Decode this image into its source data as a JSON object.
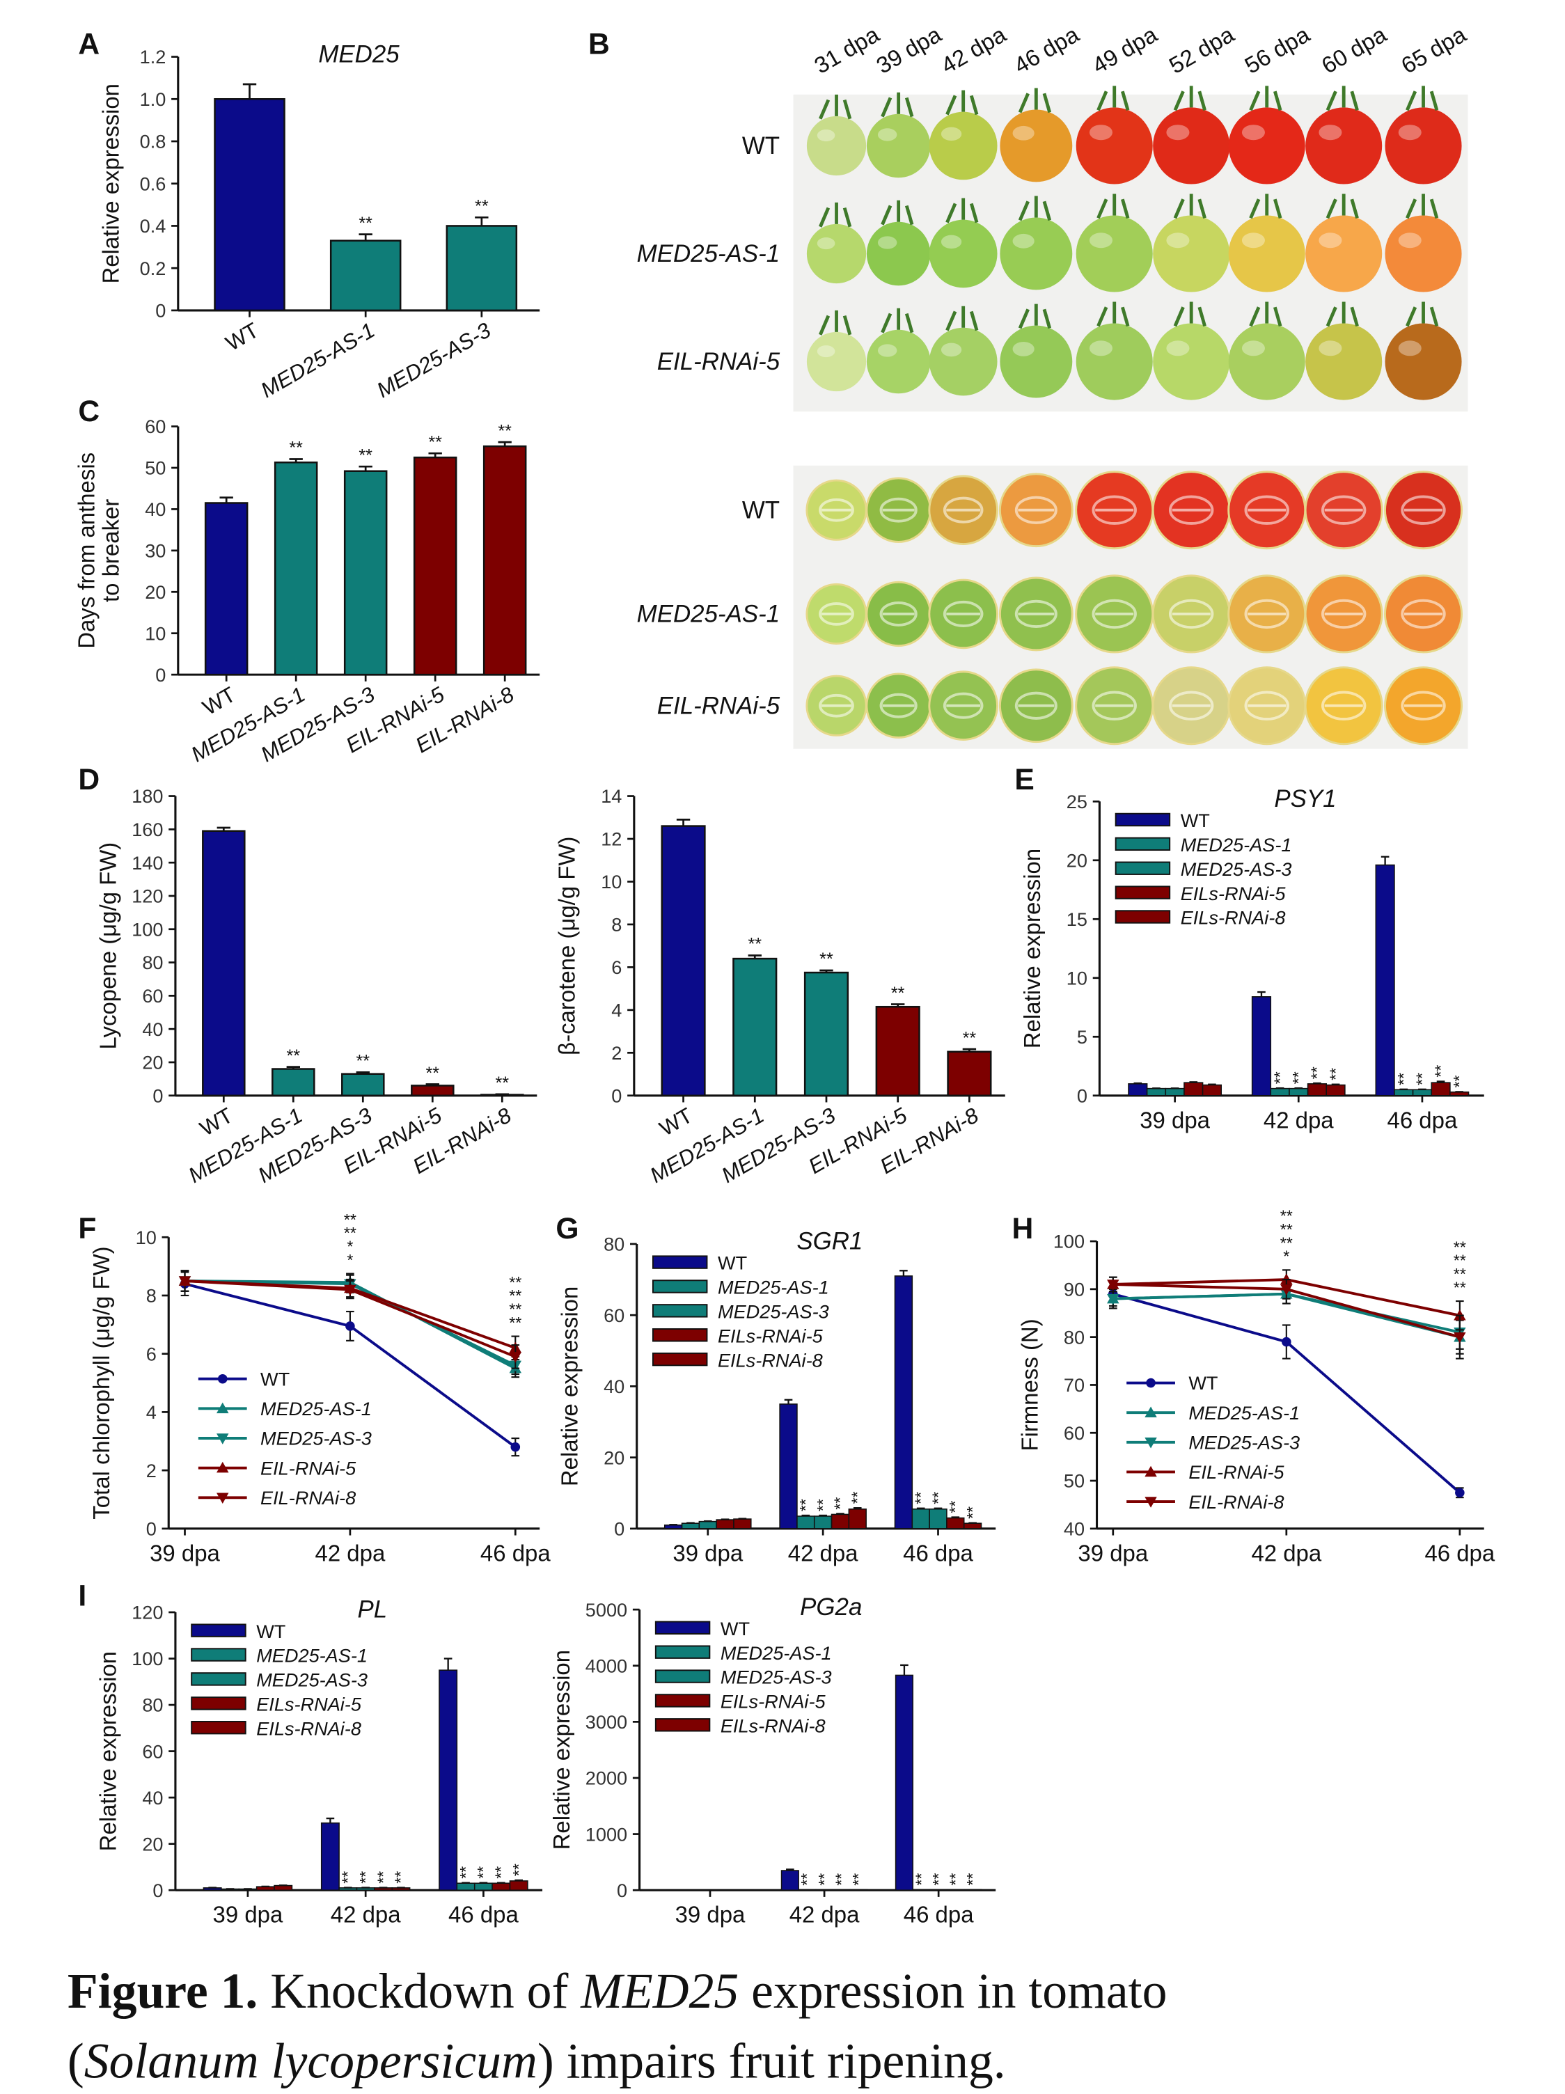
{
  "colors": {
    "wt": "#0b0b8a",
    "med25": "#0f7d78",
    "eil": "#7d0000",
    "axis": "#111111"
  },
  "panel_letters": [
    "A",
    "B",
    "C",
    "D",
    "E",
    "F",
    "G",
    "H",
    "I"
  ],
  "photos": {
    "dpa_labels": [
      "31 dpa",
      "39 dpa",
      "42 dpa",
      "46 dpa",
      "49 dpa",
      "52 dpa",
      "56 dpa",
      "60 dpa",
      "65 dpa"
    ],
    "whole_rows": [
      {
        "label": "WT",
        "colors": [
          "#c8dc8a",
          "#a9cf5e",
          "#b9cc4a",
          "#e59a2a",
          "#e23418",
          "#e02a18",
          "#e42818",
          "#e02a1a",
          "#de2b1a"
        ]
      },
      {
        "label": "MED25-AS-1",
        "colors": [
          "#b6d86c",
          "#8cc84e",
          "#94cc52",
          "#98cc54",
          "#a2ce58",
          "#c7d660",
          "#e6c648",
          "#f7a74a",
          "#f38a3a"
        ]
      },
      {
        "label": "EIL-RNAi-5",
        "colors": [
          "#d2e49a",
          "#a7d366",
          "#a5d064",
          "#95c957",
          "#9fcc5c",
          "#b7d868",
          "#a9cf5f",
          "#c6c44a",
          "#b86a1c"
        ]
      }
    ],
    "cut_rows": [
      {
        "label": "WT",
        "colors": [
          "#c9da6a",
          "#90bb44",
          "#d7a640",
          "#ec9a40",
          "#e53a22",
          "#e33322",
          "#e53a26",
          "#e3402c",
          "#d8301e"
        ]
      },
      {
        "label": "MED25-AS-1",
        "colors": [
          "#bfdb6c",
          "#88bd48",
          "#8cbf4c",
          "#90c04e",
          "#9bc452",
          "#c8d068",
          "#e8b048",
          "#f0963a",
          "#f08a36"
        ]
      },
      {
        "label": "EIL-RNAi-5",
        "colors": [
          "#b9d66a",
          "#8cbf4c",
          "#94c252",
          "#8ebd4c",
          "#a4c75a",
          "#d7d288",
          "#e3d27a",
          "#f2c440",
          "#f3a62c"
        ]
      }
    ]
  },
  "chart_data": [
    {
      "id": "A",
      "type": "bar",
      "title": "MED25",
      "ylabel": [
        "Relative expression"
      ],
      "ylim": [
        0,
        1.2
      ],
      "ytick_step": 0.2,
      "yticks": [
        "0",
        "0.2",
        "0.4",
        "0.6",
        "0.8",
        "1.0",
        "1.2"
      ],
      "categories": [
        "WT",
        "MED25-AS-1",
        "MED25-AS-3"
      ],
      "values": [
        1.0,
        0.33,
        0.4
      ],
      "errors": [
        0.07,
        0.03,
        0.04
      ],
      "sig": [
        "",
        "**",
        "**"
      ],
      "bar_colors": [
        "wt",
        "med25",
        "med25"
      ]
    },
    {
      "id": "C",
      "type": "bar",
      "title": "",
      "ylabel": [
        "Days from anthesis",
        "to breaker"
      ],
      "ylim": [
        0,
        60
      ],
      "ytick_step": 10,
      "yticks": [
        "0",
        "10",
        "20",
        "30",
        "40",
        "50",
        "60"
      ],
      "categories": [
        "WT",
        "MED25-AS-1",
        "MED25-AS-3",
        "EIL-RNAi-5",
        "EIL-RNAi-8"
      ],
      "values": [
        41.5,
        51.3,
        49.2,
        52.5,
        55.2
      ],
      "errors": [
        1.3,
        0.8,
        1.1,
        1.0,
        1.0
      ],
      "sig": [
        "",
        "**",
        "**",
        "**",
        "**"
      ],
      "bar_colors": [
        "wt",
        "med25",
        "med25",
        "eil",
        "eil"
      ]
    },
    {
      "id": "D1",
      "type": "bar",
      "title": "",
      "ylabel": [
        "Lycopene (μg/g FW)"
      ],
      "ylim": [
        0,
        180
      ],
      "ytick_step": 20,
      "yticks": [
        "0",
        "20",
        "40",
        "60",
        "80",
        "100",
        "120",
        "140",
        "160",
        "180"
      ],
      "categories": [
        "WT",
        "MED25-AS-1",
        "MED25-AS-3",
        "EIL-RNAi-5",
        "EIL-RNAi-8"
      ],
      "values": [
        159,
        16,
        13,
        6,
        0.5
      ],
      "errors": [
        2,
        1.2,
        1,
        0.8,
        0.3
      ],
      "sig": [
        "",
        "**",
        "**",
        "**",
        "**"
      ],
      "bar_colors": [
        "wt",
        "med25",
        "med25",
        "eil",
        "eil"
      ]
    },
    {
      "id": "D2",
      "type": "bar",
      "title": "",
      "ylabel": [
        "β-carotene (μg/g FW)"
      ],
      "ylim": [
        0,
        14
      ],
      "ytick_step": 2,
      "yticks": [
        "0",
        "2",
        "4",
        "6",
        "8",
        "10",
        "12",
        "14"
      ],
      "categories": [
        "WT",
        "MED25-AS-1",
        "MED25-AS-3",
        "EIL-RNAi-5",
        "EIL-RNAi-8"
      ],
      "values": [
        12.6,
        6.4,
        5.75,
        4.15,
        2.05
      ],
      "errors": [
        0.3,
        0.15,
        0.1,
        0.12,
        0.12
      ],
      "sig": [
        "",
        "**",
        "**",
        "**",
        "**"
      ],
      "bar_colors": [
        "wt",
        "med25",
        "med25",
        "eil",
        "eil"
      ]
    },
    {
      "id": "E",
      "type": "grouped-bar",
      "title": "PSY1",
      "ylabel": [
        "Relative expression"
      ],
      "ylim": [
        0,
        25
      ],
      "ytick_step": 5,
      "yticks": [
        "0",
        "5",
        "10",
        "15",
        "20",
        "25"
      ],
      "categories": [
        "39 dpa",
        "42 dpa",
        "46 dpa"
      ],
      "series": [
        {
          "name": "WT",
          "color": "wt",
          "values": [
            1.0,
            8.4,
            19.6
          ],
          "errors": [
            0.05,
            0.4,
            0.7
          ],
          "sig": [
            "",
            "",
            ""
          ]
        },
        {
          "name": "MED25-AS-1",
          "color": "med25",
          "values": [
            0.6,
            0.6,
            0.5
          ],
          "errors": [
            0.02,
            0.03,
            0.03
          ],
          "sig": [
            "",
            "**",
            "**"
          ]
        },
        {
          "name": "MED25-AS-3",
          "color": "med25",
          "values": [
            0.6,
            0.6,
            0.5
          ],
          "errors": [
            0.02,
            0.03,
            0.03
          ],
          "sig": [
            "",
            "**",
            "**"
          ]
        },
        {
          "name": "EILs-RNAi-5",
          "color": "eil",
          "values": [
            1.1,
            1.0,
            1.1
          ],
          "errors": [
            0.05,
            0.05,
            0.1
          ],
          "sig": [
            "",
            "**",
            "**"
          ]
        },
        {
          "name": "EILs-RNAi-8",
          "color": "eil",
          "values": [
            0.9,
            0.9,
            0.3
          ],
          "errors": [
            0.05,
            0.05,
            0.02
          ],
          "sig": [
            "",
            "**",
            "**"
          ]
        }
      ],
      "legend": "top-left"
    },
    {
      "id": "F",
      "type": "line",
      "title": "",
      "ylabel": [
        "Total chlorophyll (μg/g FW)"
      ],
      "ylim": [
        0,
        10
      ],
      "ytick_step": 2,
      "yticks": [
        "0",
        "2",
        "4",
        "6",
        "8",
        "10"
      ],
      "categories": [
        "39 dpa",
        "42 dpa",
        "46 dpa"
      ],
      "series": [
        {
          "name": "WT",
          "color": "wt",
          "marker": "circle",
          "values": [
            8.4,
            6.95,
            2.8
          ],
          "errors": [
            0.4,
            0.5,
            0.3
          ]
        },
        {
          "name": "MED25-AS-1",
          "color": "med25",
          "marker": "triangle-up",
          "values": [
            8.5,
            8.45,
            5.5
          ],
          "errors": [
            0.35,
            0.3,
            0.3
          ]
        },
        {
          "name": "MED25-AS-3",
          "color": "med25",
          "marker": "triangle-down",
          "values": [
            8.5,
            8.4,
            5.6
          ],
          "errors": [
            0.35,
            0.3,
            0.3
          ]
        },
        {
          "name": "EIL-RNAi-5",
          "color": "eil",
          "marker": "triangle-up",
          "values": [
            8.5,
            8.25,
            6.2
          ],
          "errors": [
            0.35,
            0.3,
            0.4
          ]
        },
        {
          "name": "EIL-RNAi-8",
          "color": "eil",
          "marker": "triangle-down",
          "values": [
            8.5,
            8.2,
            5.9
          ],
          "errors": [
            0.35,
            0.3,
            0.4
          ]
        }
      ],
      "sig_stack": [
        [],
        [
          "**",
          "**",
          "*",
          "*"
        ],
        [
          "**",
          "**",
          "**",
          "**"
        ]
      ],
      "legend": "bottom-left"
    },
    {
      "id": "G",
      "type": "grouped-bar",
      "title": "SGR1",
      "ylabel": [
        "Relative expression"
      ],
      "ylim": [
        0,
        80
      ],
      "ytick_step": 20,
      "yticks": [
        "0",
        "20",
        "40",
        "60",
        "80"
      ],
      "categories": [
        "39 dpa",
        "42 dpa",
        "46 dpa"
      ],
      "series": [
        {
          "name": "WT",
          "color": "wt",
          "values": [
            1.0,
            35,
            71
          ],
          "errors": [
            0.1,
            1.2,
            1.5
          ],
          "sig": [
            "",
            "",
            ""
          ]
        },
        {
          "name": "MED25-AS-1",
          "color": "med25",
          "values": [
            1.5,
            3.5,
            5.5
          ],
          "errors": [
            0.1,
            0.2,
            0.2
          ],
          "sig": [
            "",
            "**",
            "**"
          ]
        },
        {
          "name": "MED25-AS-3",
          "color": "med25",
          "values": [
            2.0,
            3.5,
            5.5
          ],
          "errors": [
            0.1,
            0.2,
            0.2
          ],
          "sig": [
            "",
            "**",
            "**"
          ]
        },
        {
          "name": "EILs-RNAi-5",
          "color": "eil",
          "values": [
            2.5,
            4.0,
            3.0
          ],
          "errors": [
            0.1,
            0.2,
            0.2
          ],
          "sig": [
            "",
            "**",
            "**"
          ]
        },
        {
          "name": "EILs-RNAi-8",
          "color": "eil",
          "values": [
            2.7,
            5.5,
            1.5
          ],
          "errors": [
            0.1,
            0.3,
            0.1
          ],
          "sig": [
            "",
            "**",
            "**"
          ]
        }
      ],
      "legend": "top-left"
    },
    {
      "id": "H",
      "type": "line",
      "title": "",
      "ylabel": [
        "Firmness (N)"
      ],
      "ylim": [
        40,
        100
      ],
      "ytick_step": 10,
      "yticks": [
        "40",
        "50",
        "60",
        "70",
        "80",
        "90",
        "100"
      ],
      "categories": [
        "39 dpa",
        "42 dpa",
        "46 dpa"
      ],
      "series": [
        {
          "name": "WT",
          "color": "wt",
          "marker": "circle",
          "values": [
            89,
            79,
            47.5
          ],
          "errors": [
            2.5,
            3.5,
            1
          ]
        },
        {
          "name": "MED25-AS-1",
          "color": "med25",
          "marker": "triangle-up",
          "values": [
            88,
            89,
            80
          ],
          "errors": [
            2,
            2,
            3.5
          ]
        },
        {
          "name": "MED25-AS-3",
          "color": "med25",
          "marker": "triangle-down",
          "values": [
            88,
            89,
            81
          ],
          "errors": [
            2,
            2,
            3.5
          ]
        },
        {
          "name": "EIL-RNAi-5",
          "color": "eil",
          "marker": "triangle-up",
          "values": [
            91,
            92,
            84.5
          ],
          "errors": [
            1.5,
            2,
            3
          ]
        },
        {
          "name": "EIL-RNAi-8",
          "color": "eil",
          "marker": "triangle-down",
          "values": [
            91,
            90,
            80
          ],
          "errors": [
            1.5,
            2,
            4.5
          ]
        }
      ],
      "sig_stack": [
        [],
        [
          "**",
          "**",
          "**",
          "*"
        ],
        [
          "**",
          "**",
          "**",
          "**"
        ]
      ],
      "legend": "bottom-left"
    },
    {
      "id": "I1",
      "type": "grouped-bar",
      "title": "PL",
      "ylabel": [
        "Relative expression"
      ],
      "ylim": [
        0,
        120
      ],
      "ytick_step": 20,
      "yticks": [
        "0",
        "20",
        "40",
        "60",
        "80",
        "100",
        "120"
      ],
      "categories": [
        "39 dpa",
        "42 dpa",
        "46 dpa"
      ],
      "series": [
        {
          "name": "WT",
          "color": "wt",
          "values": [
            1.0,
            29,
            95
          ],
          "errors": [
            0.1,
            2,
            5
          ],
          "sig": [
            "",
            "",
            ""
          ]
        },
        {
          "name": "MED25-AS-1",
          "color": "med25",
          "values": [
            0.5,
            1.0,
            3.0
          ],
          "errors": [
            0.05,
            0.1,
            0.2
          ],
          "sig": [
            "",
            "**",
            "**"
          ]
        },
        {
          "name": "MED25-AS-3",
          "color": "med25",
          "values": [
            0.5,
            1.0,
            3.0
          ],
          "errors": [
            0.05,
            0.1,
            0.2
          ],
          "sig": [
            "",
            "**",
            "**"
          ]
        },
        {
          "name": "EILs-RNAi-5",
          "color": "eil",
          "values": [
            1.5,
            1.0,
            3.0
          ],
          "errors": [
            0.1,
            0.1,
            0.2
          ],
          "sig": [
            "",
            "**",
            "**"
          ]
        },
        {
          "name": "EILs-RNAi-8",
          "color": "eil",
          "values": [
            2.0,
            1.0,
            4.0
          ],
          "errors": [
            0.1,
            0.1,
            0.3
          ],
          "sig": [
            "",
            "**",
            "**"
          ]
        }
      ],
      "legend": "top-left"
    },
    {
      "id": "I2",
      "type": "grouped-bar",
      "title": "PG2a",
      "ylabel": [
        "Relative expression"
      ],
      "ylim": [
        0,
        5000
      ],
      "ytick_step": 1000,
      "yticks": [
        "0",
        "1000",
        "2000",
        "3000",
        "4000",
        "5000"
      ],
      "categories": [
        "39 dpa",
        "42 dpa",
        "46 dpa"
      ],
      "series": [
        {
          "name": "WT",
          "color": "wt",
          "values": [
            1,
            350,
            3830
          ],
          "errors": [
            0,
            20,
            180
          ],
          "sig": [
            "",
            "",
            ""
          ]
        },
        {
          "name": "MED25-AS-1",
          "color": "med25",
          "values": [
            1,
            8,
            10
          ],
          "errors": [
            0,
            0,
            0
          ],
          "sig": [
            "",
            "**",
            "**"
          ]
        },
        {
          "name": "MED25-AS-3",
          "color": "med25",
          "values": [
            1,
            8,
            10
          ],
          "errors": [
            0,
            0,
            0
          ],
          "sig": [
            "",
            "**",
            "**"
          ]
        },
        {
          "name": "EILs-RNAi-5",
          "color": "eil",
          "values": [
            1,
            8,
            10
          ],
          "errors": [
            0,
            0,
            0
          ],
          "sig": [
            "",
            "**",
            "**"
          ]
        },
        {
          "name": "EILs-RNAi-8",
          "color": "eil",
          "values": [
            1,
            8,
            10
          ],
          "errors": [
            0,
            0,
            0
          ],
          "sig": [
            "",
            "**",
            "**"
          ]
        }
      ],
      "legend": "top-left"
    }
  ],
  "caption": {
    "label": "Figure 1.",
    "part1": " Knockdown of ",
    "gene": "MED25",
    "part2": " expression in tomato",
    "part3": "(",
    "species": "Solanum lycopersicum",
    "part4": ") impairs fruit ripening."
  }
}
